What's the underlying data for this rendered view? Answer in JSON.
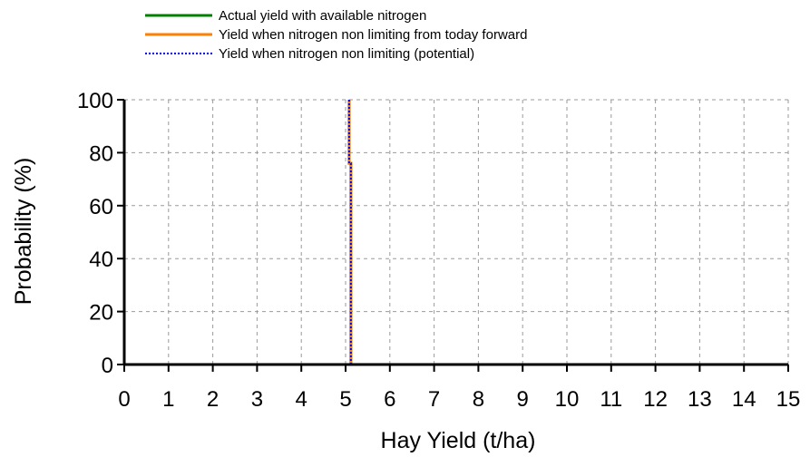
{
  "chart_data": {
    "type": "line",
    "title": "",
    "xlabel": "Hay Yield (t/ha)",
    "ylabel": "Probability (%)",
    "xlim": [
      0,
      15
    ],
    "ylim": [
      0,
      100
    ],
    "x_ticks": [
      0,
      1,
      2,
      3,
      4,
      5,
      6,
      7,
      8,
      9,
      10,
      11,
      12,
      13,
      14,
      15
    ],
    "y_ticks": [
      0,
      20,
      40,
      60,
      80,
      100
    ],
    "grid": true,
    "legend_position": "top-left",
    "series": [
      {
        "name": "Actual yield with available nitrogen",
        "color": "#008000",
        "style": "solid",
        "points": [
          [
            5.12,
            0
          ],
          [
            5.12,
            76
          ],
          [
            5.08,
            76
          ],
          [
            5.08,
            100
          ]
        ]
      },
      {
        "name": "Yield when nitrogen non limiting from today forward",
        "color": "#ff8000",
        "style": "solid",
        "points": [
          [
            5.12,
            0
          ],
          [
            5.12,
            76
          ],
          [
            5.08,
            76
          ],
          [
            5.08,
            100
          ]
        ]
      },
      {
        "name": "Yield when nitrogen non limiting (potential)",
        "color": "#0000ff",
        "style": "dotted",
        "points": [
          [
            5.12,
            0
          ],
          [
            5.12,
            76
          ],
          [
            5.08,
            76
          ],
          [
            5.08,
            100
          ]
        ]
      }
    ]
  }
}
